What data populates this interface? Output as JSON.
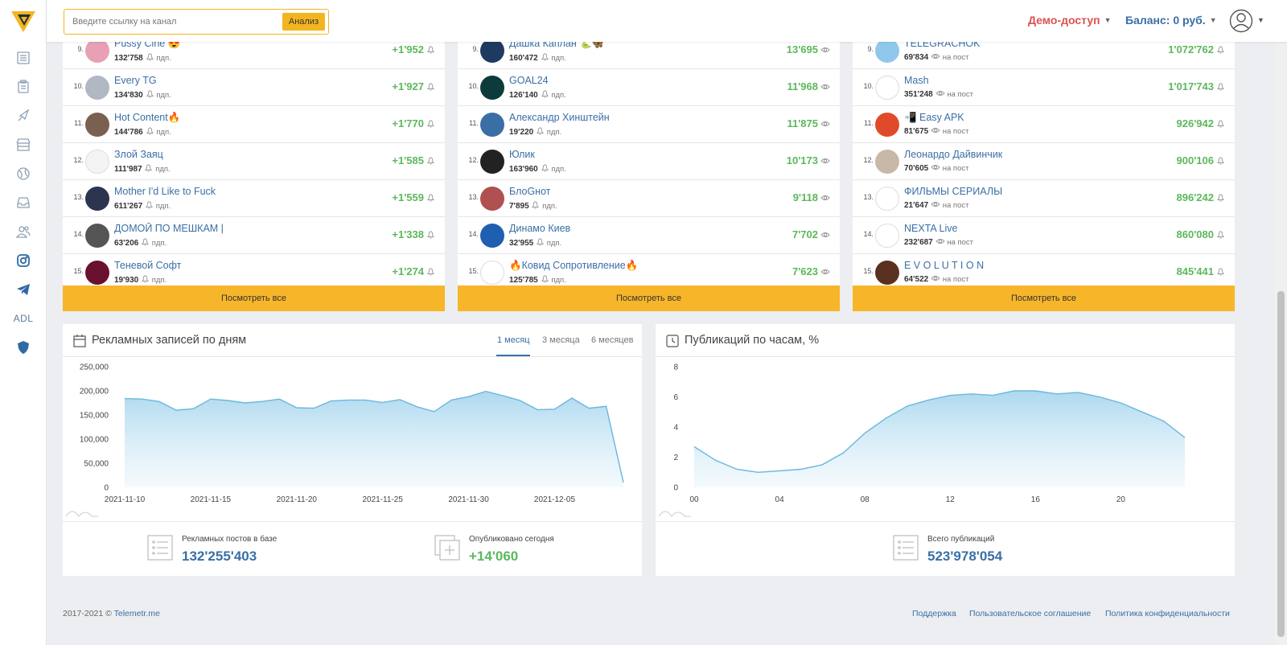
{
  "search": {
    "placeholder": "Введите ссылку на канал",
    "button": "Анализ"
  },
  "header": {
    "demo": "Демо-доступ",
    "balance": "Баланс: 0 руб."
  },
  "sidebar": {
    "adl": "ADL"
  },
  "lists": [
    {
      "unit": "пдп.",
      "value_icon": "bell-icon",
      "rows": [
        {
          "rank": "9.",
          "name": "Pussy Cine 😍",
          "sub": "132'758",
          "value": "+1'952",
          "color": "#e8a0b4"
        },
        {
          "rank": "10.",
          "name": "Every TG",
          "sub": "134'830",
          "value": "+1'927",
          "color": "#b0b8c4"
        },
        {
          "rank": "11.",
          "name": "Hot Content🔥",
          "sub": "144'786",
          "value": "+1'770",
          "color": "#7a6050"
        },
        {
          "rank": "12.",
          "name": "Злой Заяц",
          "sub": "111'987",
          "value": "+1'585",
          "color": "#f4f4f4"
        },
        {
          "rank": "13.",
          "name": "Mother I'd Like to Fuck",
          "sub": "611'267",
          "value": "+1'559",
          "color": "#2b3550"
        },
        {
          "rank": "14.",
          "name": "ДОМОЙ ПО МЕШКАМ |",
          "sub": "63'206",
          "value": "+1'338",
          "color": "#555555"
        },
        {
          "rank": "15.",
          "name": "Теневой Софт",
          "sub": "19'930",
          "value": "+1'274",
          "color": "#6a1030"
        }
      ]
    },
    {
      "unit": "пдп.",
      "value_icon": "eye-icon",
      "rows": [
        {
          "rank": "9.",
          "name": "Дашка Каплан 🐍🦋",
          "sub": "160'472",
          "value": "13'695",
          "color": "#1f3a60"
        },
        {
          "rank": "10.",
          "name": "GOAL24",
          "sub": "126'140",
          "value": "11'968",
          "color": "#0d3b3b"
        },
        {
          "rank": "11.",
          "name": "Александр Хинштейн",
          "sub": "19'220",
          "value": "11'875",
          "color": "#3a6fa5"
        },
        {
          "rank": "12.",
          "name": "Юлик",
          "sub": "163'960",
          "value": "10'173",
          "color": "#222222"
        },
        {
          "rank": "13.",
          "name": "БлоGнот",
          "sub": "7'895",
          "value": "9'118",
          "color": "#b05050"
        },
        {
          "rank": "14.",
          "name": "Динамо Киев",
          "sub": "32'955",
          "value": "7'702",
          "color": "#1e5fb0"
        },
        {
          "rank": "15.",
          "name": "🔥Ковид Сопротивление🔥",
          "sub": "125'785",
          "value": "7'623",
          "color": "#ffffff"
        }
      ]
    },
    {
      "unit": "на пост",
      "value_icon": "bell-icon",
      "rows": [
        {
          "rank": "9.",
          "name": "TELEGRACHOK",
          "sub": "69'834",
          "value": "1'072'762",
          "color": "#8fc8ea"
        },
        {
          "rank": "10.",
          "name": "Mash",
          "sub": "351'248",
          "value": "1'017'743",
          "color": "#ffffff"
        },
        {
          "rank": "11.",
          "name": "📲 Easy APK",
          "sub": "81'675",
          "value": "926'942",
          "color": "#e04a2a"
        },
        {
          "rank": "12.",
          "name": "Леонардо Дайвинчик",
          "sub": "70'605",
          "value": "900'106",
          "color": "#c8b8a8"
        },
        {
          "rank": "13.",
          "name": "ФИЛЬМЫ СЕРИАЛЫ",
          "sub": "21'647",
          "value": "896'242",
          "color": "#ffffff"
        },
        {
          "rank": "14.",
          "name": "NEXTA Live",
          "sub": "232'687",
          "value": "860'080",
          "color": "#ffffff"
        },
        {
          "rank": "15.",
          "name": "E V O L U T I O N",
          "sub": "64'522",
          "value": "845'441",
          "color": "#5a3020"
        }
      ]
    }
  ],
  "see_all": "Посмотреть все",
  "ads_card": {
    "title": "Рекламных записей по дням",
    "tabs": [
      "1 месяц",
      "3 месяца",
      "6 месяцев"
    ],
    "stat1_label": "Рекламных постов в базе",
    "stat1_value": "132'255'403",
    "stat2_label": "Опубликовано сегодня",
    "stat2_value": "+14'060"
  },
  "pub_card": {
    "title": "Публикаций по часам, %",
    "stat_label": "Всего публикаций",
    "stat_value": "523'978'054"
  },
  "footer": {
    "copy": "2017-2021 ©",
    "site": "Telemetr.me",
    "links": [
      "Поддержка",
      "Пользовательское соглашение",
      "Политика конфиденциальности"
    ]
  },
  "chart_data": [
    {
      "type": "area",
      "title": "Рекламных записей по дням",
      "x": [
        "2021-11-10",
        "2021-11-11",
        "2021-11-12",
        "2021-11-13",
        "2021-11-14",
        "2021-11-15",
        "2021-11-16",
        "2021-11-17",
        "2021-11-18",
        "2021-11-19",
        "2021-11-20",
        "2021-11-21",
        "2021-11-22",
        "2021-11-23",
        "2021-11-24",
        "2021-11-25",
        "2021-11-26",
        "2021-11-27",
        "2021-11-28",
        "2021-11-29",
        "2021-11-30",
        "2021-12-01",
        "2021-12-02",
        "2021-12-03",
        "2021-12-04",
        "2021-12-05",
        "2021-12-06",
        "2021-12-07",
        "2021-12-08",
        "2021-12-09"
      ],
      "values": [
        184000,
        183000,
        178000,
        160000,
        163000,
        183000,
        180000,
        175000,
        178000,
        183000,
        165000,
        164000,
        179000,
        181000,
        181000,
        176000,
        182000,
        167000,
        157000,
        181000,
        188000,
        199000,
        190000,
        180000,
        161000,
        162000,
        185000,
        164000,
        168000,
        10000
      ],
      "x_ticks": [
        "2021-11-10",
        "2021-11-15",
        "2021-11-20",
        "2021-11-25",
        "2021-11-30",
        "2021-12-05"
      ],
      "y_ticks": [
        "0",
        "50,000",
        "100,000",
        "150,000",
        "200,000",
        "250,000"
      ],
      "ylim": [
        0,
        250000
      ],
      "grid": false
    },
    {
      "type": "area",
      "title": "Публикаций по часам, %",
      "x": [
        0,
        1,
        2,
        3,
        4,
        5,
        6,
        7,
        8,
        9,
        10,
        11,
        12,
        13,
        14,
        15,
        16,
        17,
        18,
        19,
        20,
        21,
        22,
        23
      ],
      "values": [
        2.7,
        1.8,
        1.2,
        1.0,
        1.1,
        1.2,
        1.5,
        2.3,
        3.6,
        4.6,
        5.4,
        5.8,
        6.1,
        6.2,
        6.1,
        6.4,
        6.4,
        6.2,
        6.3,
        6.0,
        5.6,
        5.0,
        4.4,
        3.3
      ],
      "x_ticks": [
        "00",
        "04",
        "08",
        "12",
        "16",
        "20"
      ],
      "y_ticks": [
        "0",
        "2",
        "4",
        "6",
        "8"
      ],
      "ylim": [
        0,
        8
      ],
      "grid": false
    }
  ]
}
